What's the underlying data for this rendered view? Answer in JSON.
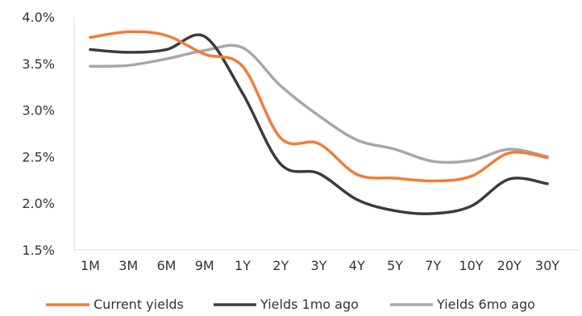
{
  "chart_data": {
    "type": "line",
    "title": "",
    "xlabel": "",
    "ylabel": "",
    "categories": [
      "1M",
      "3M",
      "6M",
      "9M",
      "1Y",
      "2Y",
      "3Y",
      "4Y",
      "5Y",
      "7Y",
      "10Y",
      "20Y",
      "30Y"
    ],
    "ylim": [
      1.5,
      4.0
    ],
    "yticks": [
      1.5,
      2.0,
      2.5,
      3.0,
      3.5,
      4.0
    ],
    "ytick_labels": [
      "1.5%",
      "2.0%",
      "2.5%",
      "3.0%",
      "3.5%",
      "4.0%"
    ],
    "grid": false,
    "legend_position": "bottom",
    "series": [
      {
        "name": "Current yields",
        "color": "#F47B35",
        "values": [
          3.78,
          3.84,
          3.8,
          3.6,
          3.47,
          2.7,
          2.64,
          2.31,
          2.27,
          2.24,
          2.29,
          2.54,
          2.49
        ]
      },
      {
        "name": "Yields 1mo ago",
        "color": "#3A3B3F",
        "values": [
          3.65,
          3.62,
          3.65,
          3.79,
          3.18,
          2.42,
          2.32,
          2.04,
          1.92,
          1.89,
          1.97,
          2.26,
          2.21
        ]
      },
      {
        "name": "Yields 6mo ago",
        "color": "#A7A7A8",
        "values": [
          3.47,
          3.48,
          3.55,
          3.64,
          3.67,
          3.26,
          2.94,
          2.68,
          2.58,
          2.45,
          2.46,
          2.58,
          2.5
        ]
      }
    ]
  }
}
